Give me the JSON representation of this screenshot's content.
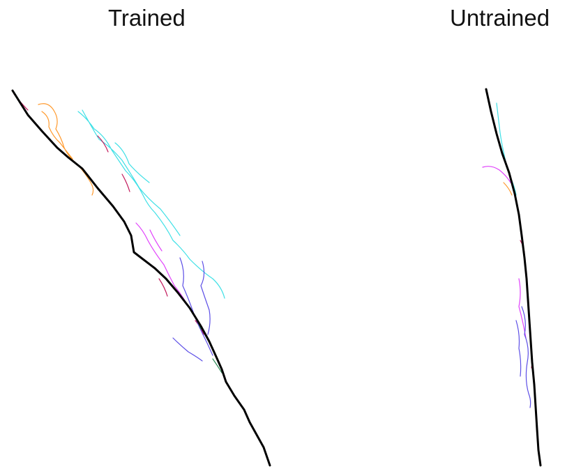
{
  "panels": {
    "trained": {
      "title": "Trained"
    },
    "untrained": {
      "title": "Untrained"
    }
  },
  "colors": {
    "reference_path": "#000000",
    "traces": [
      "#ff9a2e",
      "#3fe0e6",
      "#c2185b",
      "#e040fb",
      "#5c4ee6",
      "#2e8b57",
      "#8e2430"
    ]
  }
}
